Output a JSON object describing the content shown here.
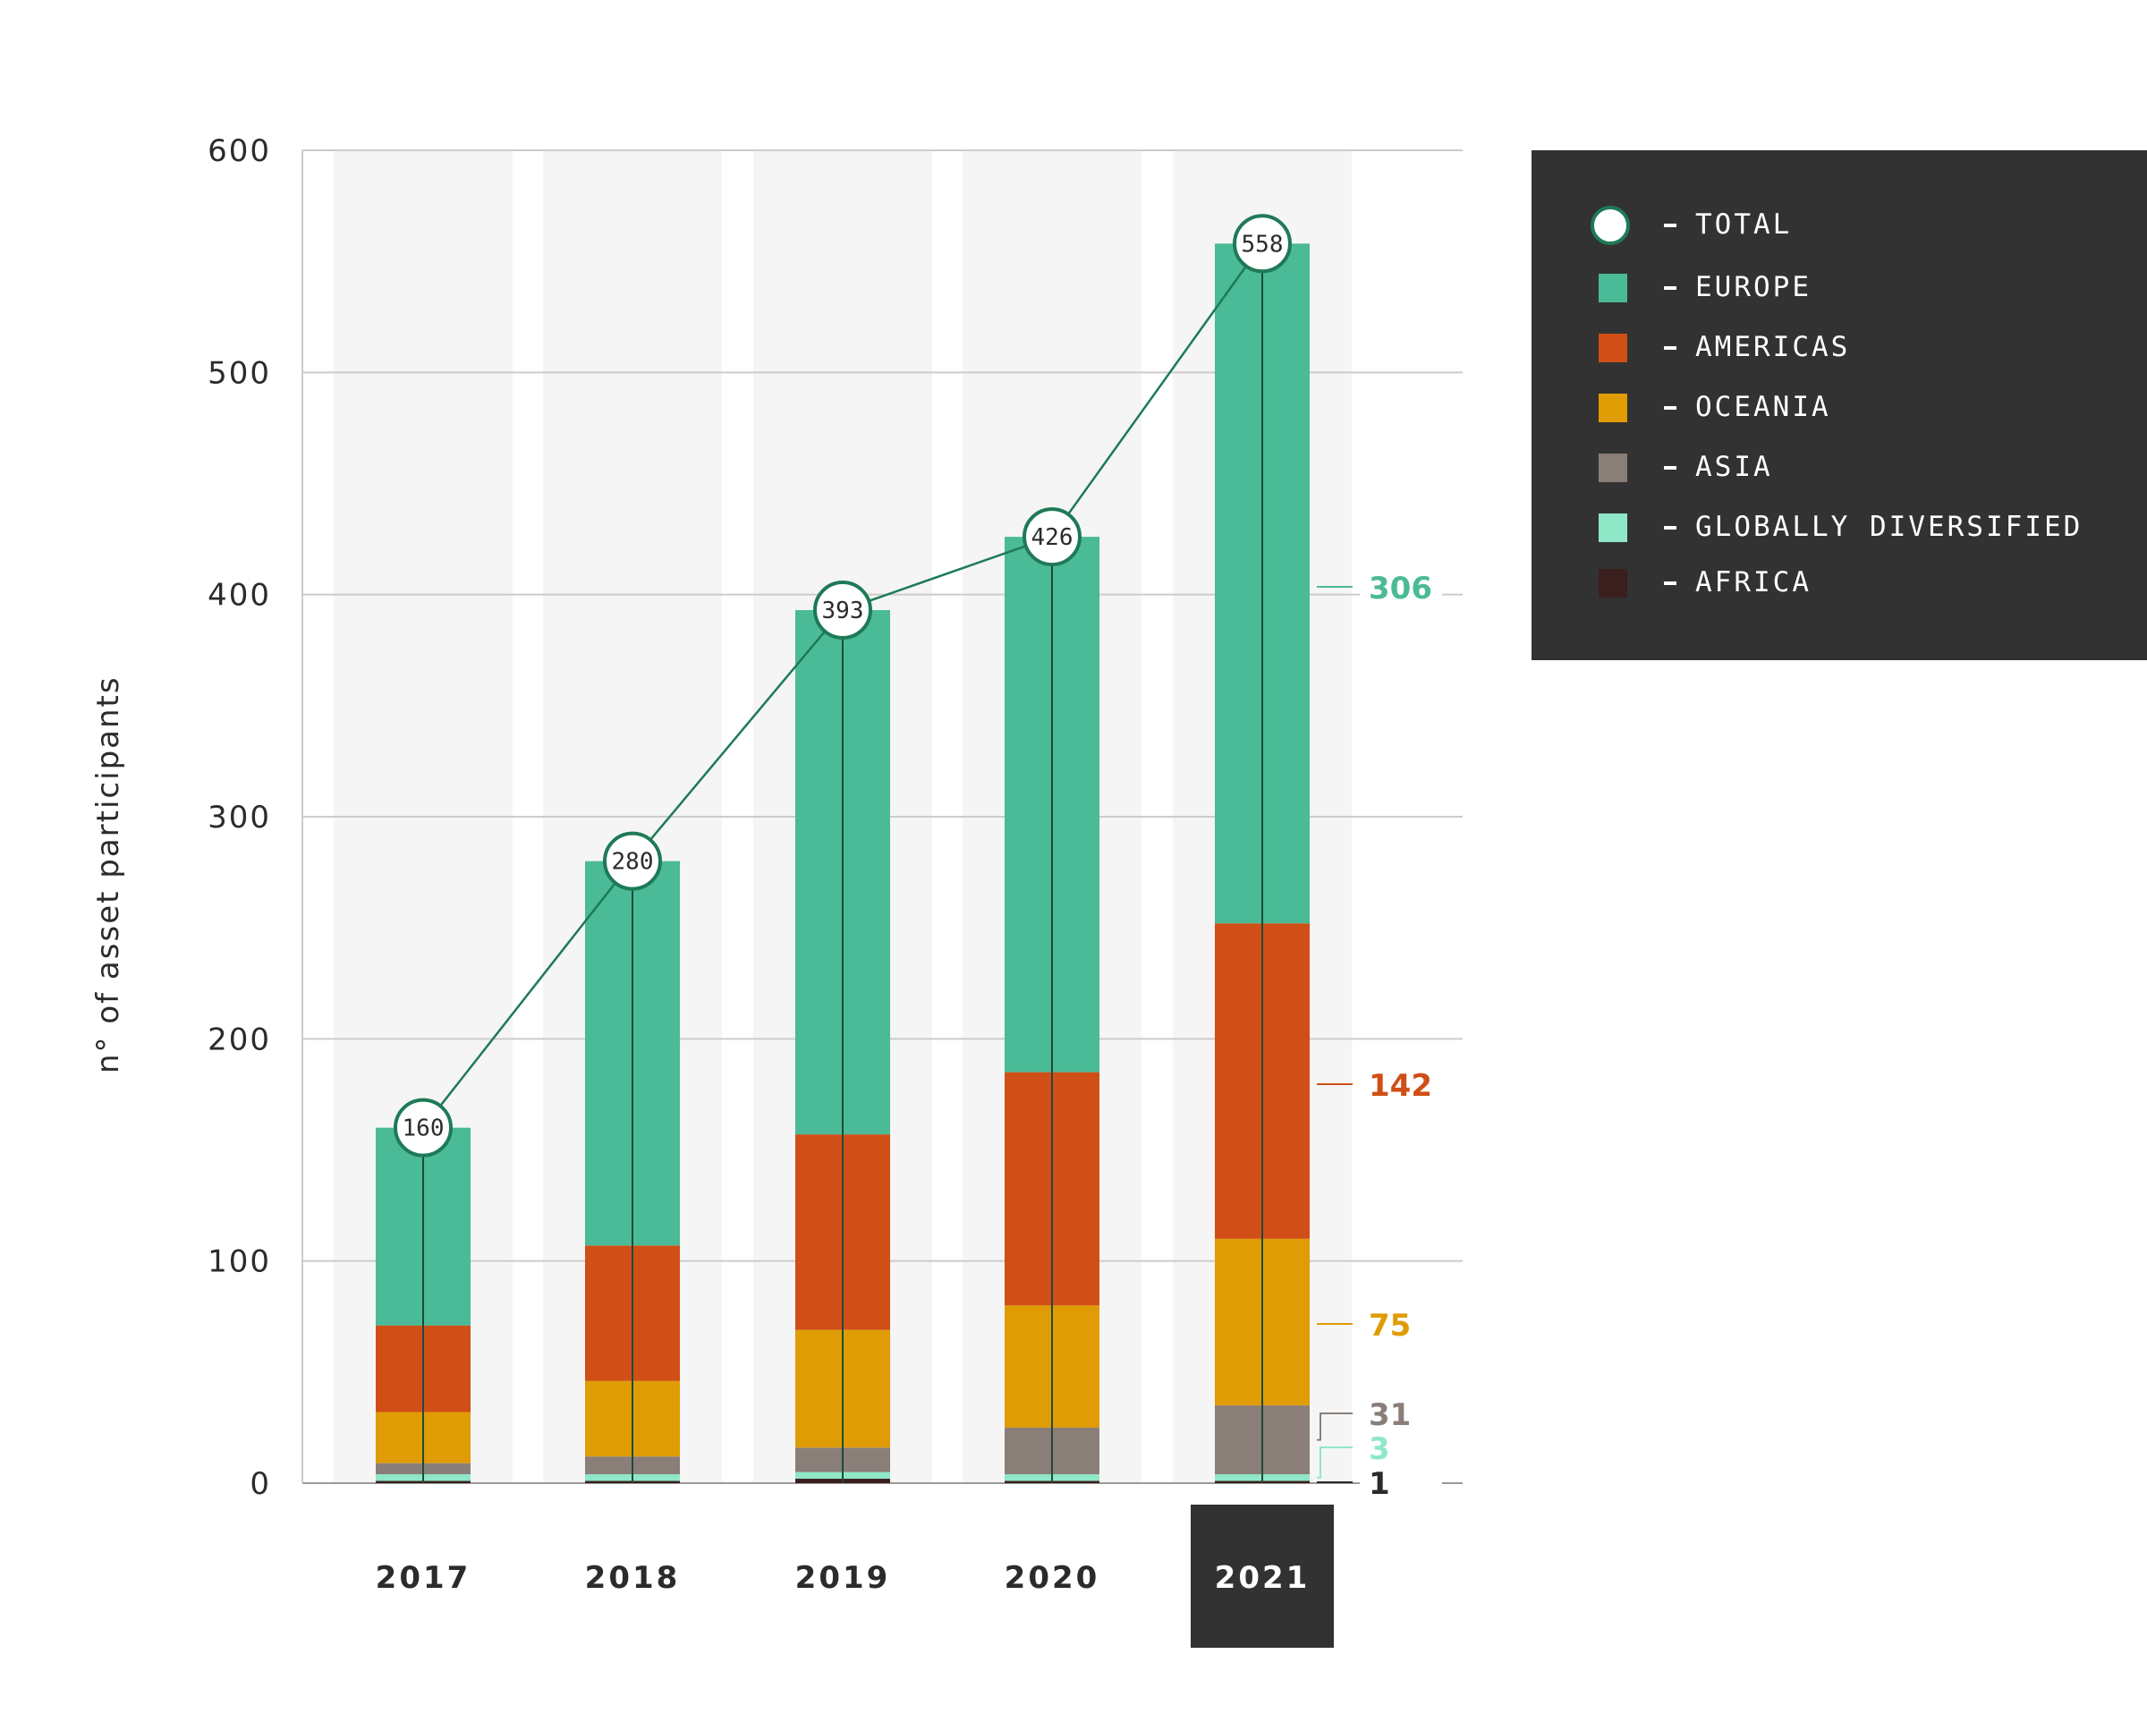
{
  "chart_data": {
    "type": "bar",
    "stacked": true,
    "ylabel": "n° of asset participants",
    "ylim": [
      0,
      600
    ],
    "yticks": [
      0,
      100,
      200,
      300,
      400,
      500,
      600
    ],
    "categories": [
      "2017",
      "2018",
      "2019",
      "2020",
      "2021"
    ],
    "highlighted_category": "2021",
    "series": [
      {
        "name": "AFRICA",
        "color": "#3a1f1f",
        "values": [
          1,
          1,
          2,
          1,
          1
        ]
      },
      {
        "name": "GLOBALLY DIVERSIFIED",
        "color": "#8ee8c8",
        "values": [
          3,
          3,
          3,
          3,
          3
        ]
      },
      {
        "name": "ASIA",
        "color": "#8a7e79",
        "values": [
          5,
          8,
          11,
          21,
          31
        ]
      },
      {
        "name": "OCEANIA",
        "color": "#e09c05",
        "values": [
          23,
          34,
          53,
          55,
          75
        ]
      },
      {
        "name": "AMERICAS",
        "color": "#d04f16",
        "values": [
          39,
          61,
          88,
          105,
          142
        ]
      },
      {
        "name": "EUROPE",
        "color": "#4bba96",
        "values": [
          89,
          173,
          236,
          241,
          306
        ]
      }
    ],
    "totals": {
      "name": "TOTAL",
      "values": [
        160,
        280,
        393,
        426,
        558
      ],
      "line_color": "#1e7a56"
    },
    "annotations": [
      {
        "series": "EUROPE",
        "text": "306",
        "color": "#4bba96"
      },
      {
        "series": "AMERICAS",
        "text": "142",
        "color": "#d04f16"
      },
      {
        "series": "OCEANIA",
        "text": "75",
        "color": "#e09c05"
      },
      {
        "series": "ASIA",
        "text": "31",
        "color": "#8a7e79"
      },
      {
        "series": "GLOBALLY DIVERSIFIED",
        "text": "3",
        "color": "#8ee8c8"
      },
      {
        "series": "AFRICA",
        "text": "1",
        "color": "#2b2b2b"
      }
    ]
  },
  "legend": {
    "items": [
      {
        "label": "TOTAL",
        "icon": "circle-icon"
      },
      {
        "label": "EUROPE",
        "color": "#4bba96"
      },
      {
        "label": "AMERICAS",
        "color": "#d04f16"
      },
      {
        "label": "OCEANIA",
        "color": "#e09c05"
      },
      {
        "label": "ASIA",
        "color": "#8a7e79"
      },
      {
        "label": "GLOBALLY DIVERSIFIED",
        "color": "#8ee8c8"
      },
      {
        "label": "AFRICA",
        "color": "#3a1f1f"
      }
    ]
  }
}
